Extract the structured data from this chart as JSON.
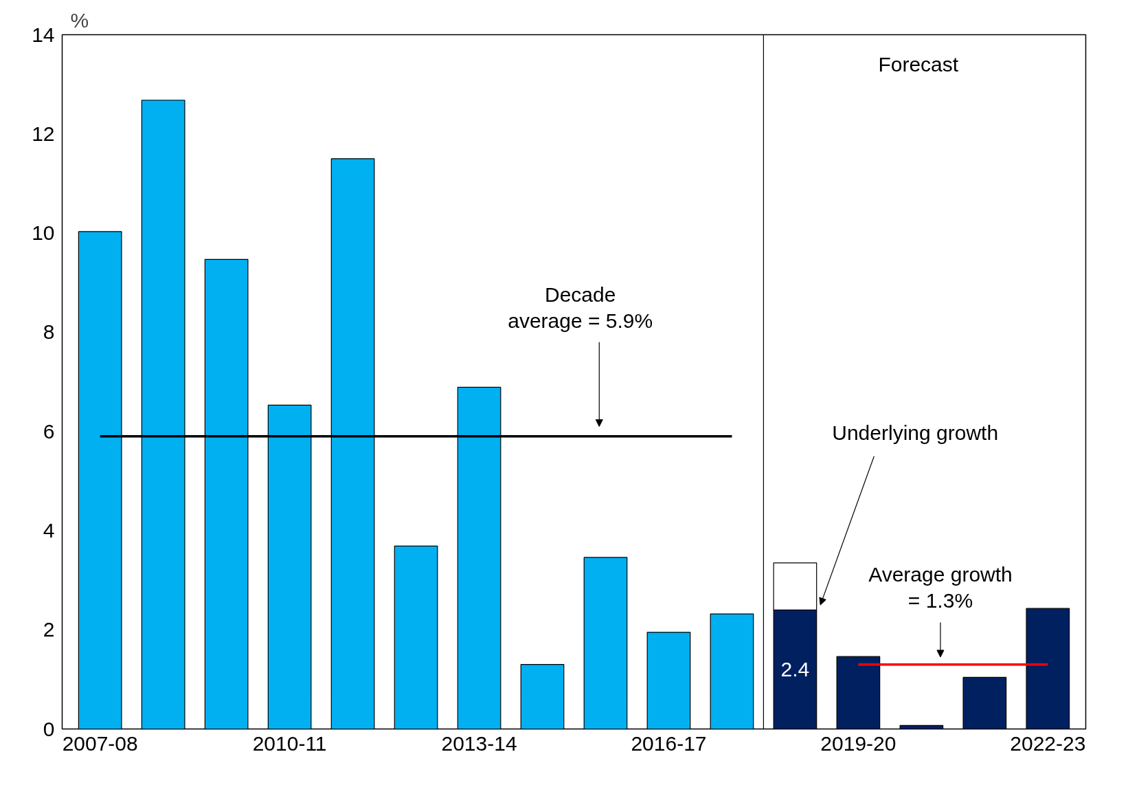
{
  "chart_data": {
    "type": "bar",
    "stacked": true,
    "ylabel": "%",
    "ylim": [
      0,
      14
    ],
    "yticks": [
      0,
      2,
      4,
      6,
      8,
      10,
      12,
      14
    ],
    "grid": false,
    "categories": [
      "2007-08",
      null,
      null,
      "2010-11",
      null,
      null,
      "2013-14",
      null,
      null,
      "2016-17",
      null,
      null,
      "2019-20",
      null,
      null,
      "2022-23"
    ],
    "series": [
      {
        "color": "#00b0f0",
        "values": [
          10.03,
          12.68,
          9.47,
          6.53,
          11.5,
          3.69,
          6.89,
          1.3,
          3.46,
          1.95,
          2.32,
          null,
          null,
          null,
          null,
          null
        ]
      },
      {
        "color": "#002060",
        "values": [
          null,
          null,
          null,
          null,
          null,
          null,
          null,
          null,
          null,
          null,
          null,
          2.4,
          1.46,
          0.07,
          1.04,
          2.43
        ],
        "value_labels": [
          null,
          null,
          null,
          null,
          null,
          null,
          null,
          null,
          null,
          null,
          null,
          "2.4",
          null,
          null,
          null,
          null
        ]
      },
      {
        "color": "#ffffff",
        "values": [
          null,
          null,
          null,
          null,
          null,
          null,
          null,
          null,
          null,
          null,
          null,
          0.95,
          null,
          null,
          null,
          null
        ]
      },
      {
        "type": "line",
        "color": "#000000",
        "values": [
          5.9,
          5.9,
          5.9,
          5.9,
          5.9,
          5.9,
          5.9,
          5.9,
          5.9,
          5.9,
          5.9,
          null,
          null,
          null,
          null,
          null
        ]
      },
      {
        "type": "line",
        "color": "#ff0000",
        "values": [
          null,
          null,
          null,
          null,
          null,
          null,
          null,
          null,
          null,
          null,
          null,
          null,
          1.3,
          1.3,
          1.3,
          1.3
        ]
      }
    ],
    "annotations": [
      "Decade\naverage = 5.9%",
      "Forecast",
      "Underlying growth",
      "Average growth\n= 1.3%"
    ]
  }
}
